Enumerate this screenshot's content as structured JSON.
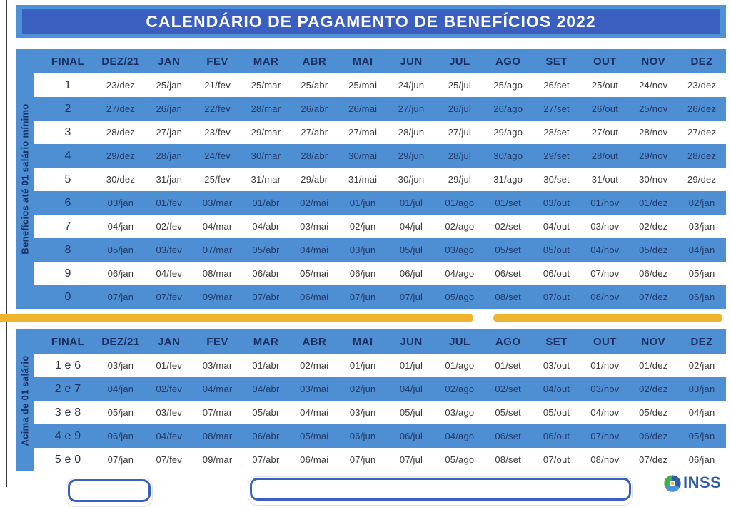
{
  "title": "CALENDÁRIO DE PAGAMENTO DE BENEFÍCIOS 2022",
  "columns": [
    "FINAL",
    "DEZ/21",
    "JAN",
    "FEV",
    "MAR",
    "ABR",
    "MAI",
    "JUN",
    "JUL",
    "AGO",
    "SET",
    "OUT",
    "NOV",
    "DEZ"
  ],
  "table1": {
    "sidebar_label": "Benefícios até 01 salário mínimo",
    "rows": [
      {
        "final": "1",
        "dates": [
          "23/dez",
          "25/jan",
          "21/fev",
          "25/mar",
          "25/abr",
          "25/mai",
          "24/jun",
          "25/jul",
          "25/ago",
          "26/set",
          "25/out",
          "24/nov",
          "23/dez"
        ]
      },
      {
        "final": "2",
        "dates": [
          "27/dez",
          "26/jan",
          "22/fev",
          "28/mar",
          "26/abr",
          "26/mai",
          "27/jun",
          "26/jul",
          "26/ago",
          "27/set",
          "26/out",
          "25/nov",
          "26/dez"
        ]
      },
      {
        "final": "3",
        "dates": [
          "28/dez",
          "27/jan",
          "23/fev",
          "29/mar",
          "27/abr",
          "27/mai",
          "28/jun",
          "27/jul",
          "29/ago",
          "28/set",
          "27/out",
          "28/nov",
          "27/dez"
        ]
      },
      {
        "final": "4",
        "dates": [
          "29/dez",
          "28/jan",
          "24/fev",
          "30/mar",
          "28/abr",
          "30/mai",
          "29/jun",
          "28/jul",
          "30/ago",
          "29/set",
          "28/out",
          "29/nov",
          "28/dez"
        ]
      },
      {
        "final": "5",
        "dates": [
          "30/dez",
          "31/jan",
          "25/fev",
          "31/mar",
          "29/abr",
          "31/mai",
          "30/jun",
          "29/jul",
          "31/ago",
          "30/set",
          "31/out",
          "30/nov",
          "29/dez"
        ]
      },
      {
        "final": "6",
        "dates": [
          "03/jan",
          "01/fev",
          "03/mar",
          "01/abr",
          "02/mai",
          "01/jun",
          "01/jul",
          "01/ago",
          "01/set",
          "03/out",
          "01/nov",
          "01/dez",
          "02/jan"
        ]
      },
      {
        "final": "7",
        "dates": [
          "04/jan",
          "02/fev",
          "04/mar",
          "04/abr",
          "03/mai",
          "02/jun",
          "04/jul",
          "02/ago",
          "02/set",
          "04/out",
          "03/nov",
          "02/dez",
          "03/jan"
        ]
      },
      {
        "final": "8",
        "dates": [
          "05/jan",
          "03/fev",
          "07/mar",
          "05/abr",
          "04/mai",
          "03/jun",
          "05/jul",
          "03/ago",
          "05/set",
          "05/out",
          "04/nov",
          "05/dez",
          "04/jan"
        ]
      },
      {
        "final": "9",
        "dates": [
          "06/jan",
          "04/fev",
          "08/mar",
          "06/abr",
          "05/mai",
          "06/jun",
          "06/jul",
          "04/ago",
          "06/set",
          "06/out",
          "07/nov",
          "06/dez",
          "05/jan"
        ]
      },
      {
        "final": "0",
        "dates": [
          "07/jan",
          "07/fev",
          "09/mar",
          "07/abr",
          "06/mai",
          "07/jun",
          "07/jul",
          "05/ago",
          "08/set",
          "07/out",
          "08/nov",
          "07/dez",
          "06/jan"
        ]
      }
    ]
  },
  "table2": {
    "sidebar_label": "Acima de 01 salário",
    "rows": [
      {
        "final": "1 e 6",
        "dates": [
          "03/jan",
          "01/fev",
          "03/mar",
          "01/abr",
          "02/mai",
          "01/jun",
          "01/jul",
          "01/ago",
          "01/set",
          "03/out",
          "01/nov",
          "01/dez",
          "02/jan"
        ]
      },
      {
        "final": "2 e 7",
        "dates": [
          "04/jan",
          "02/fev",
          "04/mar",
          "04/abr",
          "03/mai",
          "02/jun",
          "04/jul",
          "02/ago",
          "02/set",
          "04/out",
          "03/nov",
          "02/dez",
          "03/jan"
        ]
      },
      {
        "final": "3 e 8",
        "dates": [
          "05/jan",
          "03/fev",
          "07/mar",
          "05/abr",
          "04/mai",
          "03/jun",
          "05/jul",
          "03/ago",
          "05/set",
          "05/out",
          "04/nov",
          "05/dez",
          "04/jan"
        ]
      },
      {
        "final": "4 e 9",
        "dates": [
          "06/jan",
          "04/fev",
          "08/mar",
          "06/abr",
          "05/mai",
          "06/jun",
          "06/jul",
          "04/ago",
          "06/set",
          "06/out",
          "07/nov",
          "06/dez",
          "05/jan"
        ]
      },
      {
        "final": "5 e 0",
        "dates": [
          "07/jan",
          "07/fev",
          "09/mar",
          "07/abr",
          "06/mai",
          "07/jun",
          "07/jul",
          "05/ago",
          "08/set",
          "07/out",
          "08/nov",
          "07/dez",
          "06/jan"
        ]
      }
    ]
  },
  "footer": {
    "logo_text": "INSS"
  },
  "colors": {
    "banner_outer": "#4d92d9",
    "banner_inner": "#3a5fc0",
    "stripe_blue": "#4d8fd2",
    "header_text": "#1c2e63",
    "divider_yellow": "#f0b42c",
    "inss_blue": "#2d5ca8",
    "inss_green": "#3fae49"
  }
}
